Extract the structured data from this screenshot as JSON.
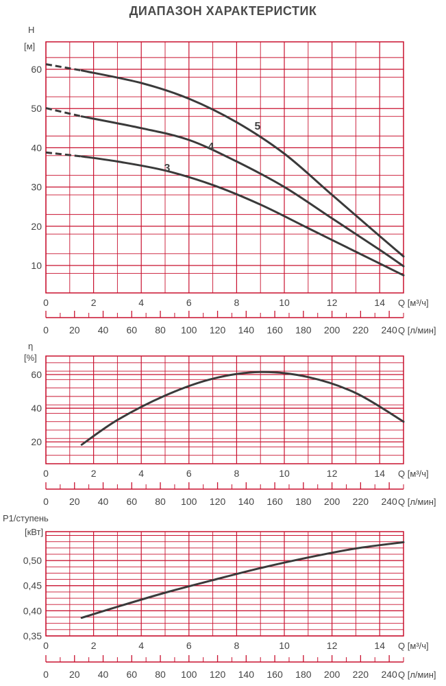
{
  "page": {
    "title": "ДИАПАЗОН ХАРАКТЕРИСТИК"
  },
  "colors": {
    "grid": "#c8102e",
    "curve": "#3a3a3a",
    "text": "#444444"
  },
  "chart_data": [
    {
      "type": "line",
      "id": "head",
      "ylabel": "H",
      "yunit": "[м]",
      "xlabel": "Q [м³/ч]",
      "xlabel2": "Q [л/мин]",
      "xlim": [
        0,
        15
      ],
      "ylim": [
        3,
        67
      ],
      "yticks": [
        10,
        20,
        30,
        40,
        50,
        60
      ],
      "xticks": [
        0,
        2,
        4,
        6,
        8,
        10,
        12,
        14
      ],
      "x2ticks": [
        0,
        20,
        40,
        60,
        80,
        100,
        120,
        140,
        160,
        180,
        200,
        220,
        240
      ],
      "series": [
        {
          "name": "3",
          "dashed_to_x": 1.5,
          "points": [
            [
              0,
              38.8
            ],
            [
              1.5,
              37.8
            ],
            [
              3,
              36.5
            ],
            [
              5,
              34.2
            ],
            [
              7,
              30.5
            ],
            [
              9,
              25.5
            ],
            [
              11,
              19.5
            ],
            [
              13,
              13.5
            ],
            [
              15,
              7.5
            ]
          ]
        },
        {
          "name": "4",
          "dashed_to_x": 1.5,
          "points": [
            [
              0,
              50.1
            ],
            [
              1.5,
              48.0
            ],
            [
              4,
              45.0
            ],
            [
              6,
              42.0
            ],
            [
              8,
              36.5
            ],
            [
              10,
              30.0
            ],
            [
              12,
              22.0
            ],
            [
              14,
              14.0
            ],
            [
              15,
              9.8
            ]
          ]
        },
        {
          "name": "5",
          "dashed_to_x": 1.5,
          "points": [
            [
              0,
              61.3
            ],
            [
              1.5,
              59.7
            ],
            [
              4,
              56.5
            ],
            [
              6,
              52.5
            ],
            [
              8,
              46.5
            ],
            [
              10,
              38.5
            ],
            [
              12,
              28.0
            ],
            [
              14,
              17.5
            ],
            [
              15,
              12.3
            ]
          ]
        }
      ]
    },
    {
      "type": "line",
      "id": "efficiency",
      "ylabel": "η",
      "yunit": "[%]",
      "xlabel": "Q [м³/ч]",
      "xlabel2": "Q [л/мин]",
      "xlim": [
        0,
        15
      ],
      "ylim": [
        7,
        71
      ],
      "yticks": [
        20,
        40,
        60
      ],
      "xticks": [
        0,
        2,
        4,
        6,
        8,
        10,
        12,
        14
      ],
      "x2ticks": [
        0,
        20,
        40,
        60,
        80,
        100,
        120,
        140,
        160,
        180,
        200,
        220,
        240
      ],
      "series": [
        {
          "points": [
            [
              1.5,
              18.3
            ],
            [
              3,
              33.0
            ],
            [
              5,
              47.5
            ],
            [
              7,
              57.5
            ],
            [
              9,
              61.5
            ],
            [
              11,
              58.5
            ],
            [
              13,
              49.0
            ],
            [
              15,
              32.0
            ]
          ]
        }
      ]
    },
    {
      "type": "line",
      "id": "power",
      "ylabel": "P1/ступень",
      "yunit": "[кВт]",
      "xlabel": "Q [м³/ч]",
      "xlabel2": "Q [л/мин]",
      "xlim": [
        0,
        15
      ],
      "ylim": [
        0.35,
        0.5575
      ],
      "yticks": [
        0.35,
        0.4,
        0.45,
        0.5
      ],
      "ytick_labels": [
        "0,35",
        "0,40",
        "0,45",
        "0,50"
      ],
      "xticks": [
        0,
        2,
        4,
        6,
        8,
        10,
        12,
        14
      ],
      "x2ticks": [
        0,
        20,
        40,
        60,
        80,
        100,
        120,
        140,
        160,
        180,
        200,
        220,
        240
      ],
      "series": [
        {
          "points": [
            [
              1.5,
              0.386
            ],
            [
              3,
              0.408
            ],
            [
              5,
              0.436
            ],
            [
              7,
              0.461
            ],
            [
              9,
              0.485
            ],
            [
              11,
              0.506
            ],
            [
              13,
              0.524
            ],
            [
              15,
              0.5365
            ]
          ]
        }
      ]
    }
  ]
}
